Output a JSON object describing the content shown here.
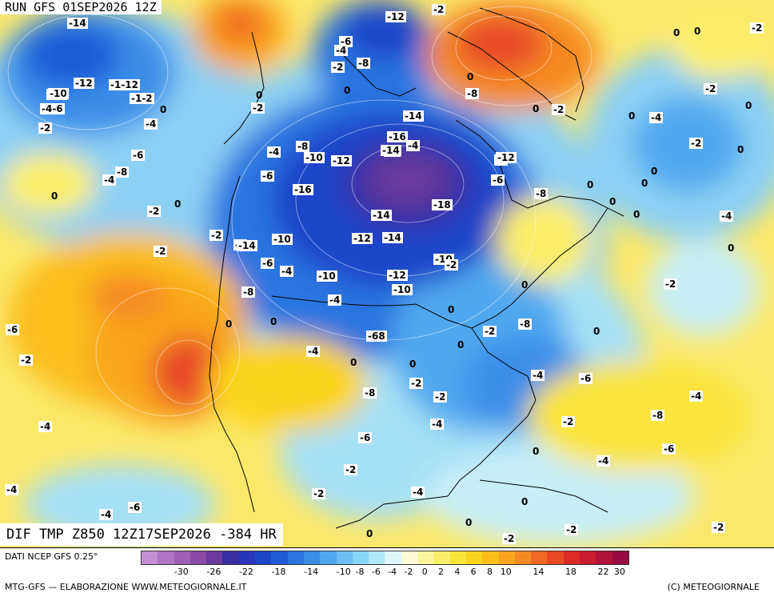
{
  "header": {
    "run_title": "RUN GFS 01SEP2026 12Z"
  },
  "map": {
    "variable_title": "DIF TMP Z850 12Z17SEP2026 -384 HR",
    "contour_labels": [
      {
        "t": "-14"
      },
      {
        "t": "-12"
      },
      {
        "t": "-1-12"
      },
      {
        "t": "-10"
      },
      {
        "t": "-4-6"
      },
      {
        "t": "-1-2"
      },
      {
        "t": "0"
      },
      {
        "t": "-2"
      },
      {
        "t": "-4"
      },
      {
        "t": "-6"
      },
      {
        "t": "-8"
      },
      {
        "t": "-4"
      },
      {
        "t": "0"
      },
      {
        "t": "-2"
      },
      {
        "t": "0"
      },
      {
        "t": "-2"
      },
      {
        "t": "-2"
      },
      {
        "t": "0"
      },
      {
        "t": "-10"
      },
      {
        "t": "-6"
      },
      {
        "t": "-4"
      },
      {
        "t": "-2"
      },
      {
        "t": "-8"
      },
      {
        "t": "-6"
      },
      {
        "t": "-2"
      },
      {
        "t": "0"
      },
      {
        "t": "-4"
      },
      {
        "t": "-8"
      },
      {
        "t": "0"
      },
      {
        "t": "-8"
      },
      {
        "t": "-12"
      },
      {
        "t": "-10"
      },
      {
        "t": "-12"
      },
      {
        "t": "-14"
      },
      {
        "t": "-16"
      },
      {
        "t": "18"
      },
      {
        "t": "-4"
      },
      {
        "t": "-6"
      },
      {
        "t": "-14"
      },
      {
        "t": "-16"
      },
      {
        "t": "-14"
      },
      {
        "t": "-18"
      },
      {
        "t": "-14"
      },
      {
        "t": "-12"
      },
      {
        "t": "-14"
      },
      {
        "t": "-10"
      },
      {
        "t": "-6"
      },
      {
        "t": "-4"
      },
      {
        "t": "-8"
      },
      {
        "t": "-2"
      },
      {
        "t": "-8"
      },
      {
        "t": "-12"
      },
      {
        "t": "-6"
      },
      {
        "t": "-10"
      },
      {
        "t": "-2"
      },
      {
        "t": "-12"
      },
      {
        "t": "-10"
      },
      {
        "t": "-10"
      },
      {
        "t": "-4"
      },
      {
        "t": "-68"
      },
      {
        "t": "-4"
      },
      {
        "t": "-2"
      },
      {
        "t": "0"
      },
      {
        "t": "-2"
      },
      {
        "t": "0"
      },
      {
        "t": "-2"
      },
      {
        "t": "0"
      },
      {
        "t": "-4"
      },
      {
        "t": "-8"
      },
      {
        "t": "-6"
      },
      {
        "t": "-4"
      },
      {
        "t": "-8"
      },
      {
        "t": "-6"
      },
      {
        "t": "-2"
      },
      {
        "t": "-4"
      },
      {
        "t": "0"
      },
      {
        "t": "0"
      },
      {
        "t": "-2"
      },
      {
        "t": "-2"
      },
      {
        "t": "-6"
      },
      {
        "t": "-2"
      },
      {
        "t": "-4"
      },
      {
        "t": "-2"
      },
      {
        "t": "0"
      },
      {
        "t": "0"
      },
      {
        "t": "-2"
      },
      {
        "t": "-2"
      },
      {
        "t": "0"
      },
      {
        "t": "0"
      },
      {
        "t": "-4"
      },
      {
        "t": "0"
      },
      {
        "t": "-2"
      },
      {
        "t": "0"
      },
      {
        "t": "0"
      },
      {
        "t": "0"
      },
      {
        "t": "0"
      },
      {
        "t": "-4"
      },
      {
        "t": "0"
      },
      {
        "t": "-2"
      },
      {
        "t": "0"
      },
      {
        "t": "0"
      },
      {
        "t": "0"
      },
      {
        "t": "0"
      },
      {
        "t": "-4"
      },
      {
        "t": "-8"
      },
      {
        "t": "-6"
      },
      {
        "t": "-4"
      },
      {
        "t": "-2"
      },
      {
        "t": "0"
      },
      {
        "t": "-2"
      },
      {
        "t": "0"
      },
      {
        "t": "-2"
      },
      {
        "t": "-4"
      },
      {
        "t": "-6"
      },
      {
        "t": "-4"
      },
      {
        "t": "0"
      },
      {
        "t": "0"
      },
      {
        "t": "0"
      },
      {
        "t": "0"
      },
      {
        "t": "-2"
      },
      {
        "t": "0"
      }
    ]
  },
  "footer": {
    "data_source": "DATI NCEP GFS 0.25°",
    "credit_left": "MTG-GFS — ELABORAZIONE WWW.METEOGIORNALE.IT",
    "credit_right": "(C) METEOGIORNALE",
    "colorbar": {
      "colors": [
        "#c58fd4",
        "#b074c4",
        "#9e5fb5",
        "#8a4aa6",
        "#6b3a9c",
        "#3b2ea0",
        "#2a36b8",
        "#1e45c8",
        "#1f5ad6",
        "#2a75e0",
        "#3a8ee8",
        "#4fa8ef",
        "#6cc0f4",
        "#8ad6f6",
        "#b0e8f8",
        "#dff6fb",
        "#fbfbd8",
        "#fbf59e",
        "#fbee6a",
        "#fbe43a",
        "#fbd41e",
        "#fbbe1a",
        "#f9a51e",
        "#f58a22",
        "#f06a24",
        "#e84a26",
        "#dc2a28",
        "#c91c30",
        "#b0123a",
        "#960c40"
      ],
      "tick_labels": [
        "-30",
        "-26",
        "-22",
        "-18",
        "-14",
        "-10",
        "-8",
        "-6",
        "-4",
        "-2",
        "0",
        "2",
        "4",
        "6",
        "8",
        "10",
        "14",
        "18",
        "22",
        "30"
      ]
    }
  }
}
